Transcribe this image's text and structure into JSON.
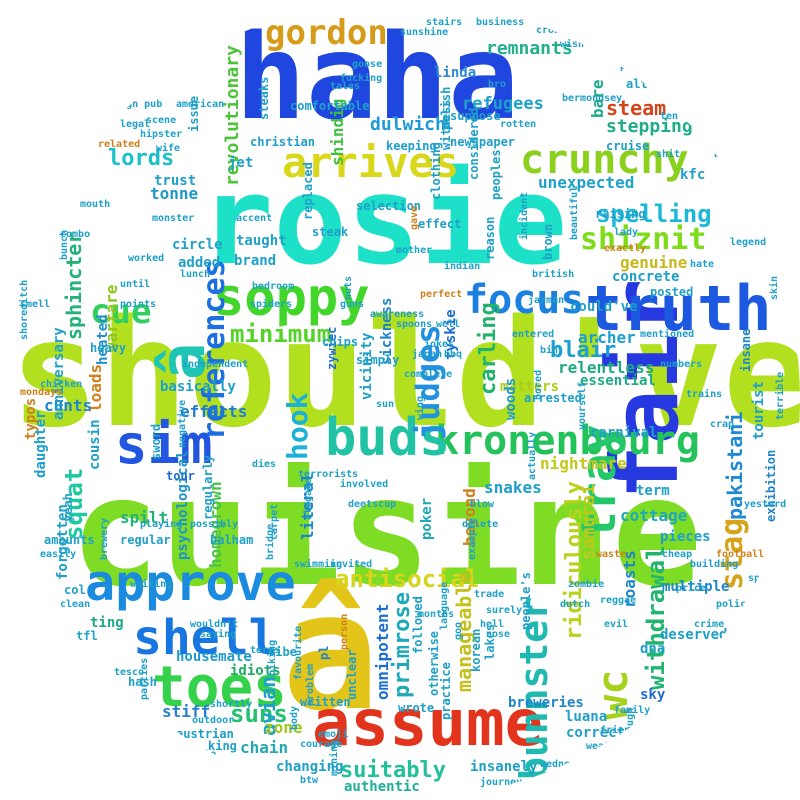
{
  "words": [
    {
      "text": "should've",
      "color": "#b2e01e"
    },
    {
      "text": "cuisine",
      "color": "#7fdc24"
    },
    {
      "text": "rosie",
      "color": "#1de0c8"
    },
    {
      "text": "haha",
      "color": "#1f47e0"
    },
    {
      "text": "â",
      "color": "#e3c51a"
    },
    {
      "text": "assume",
      "color": "#e2341c"
    },
    {
      "text": "fair",
      "color": "#2638e0"
    },
    {
      "text": "truth",
      "color": "#1d59e0"
    },
    {
      "text": "kronenbourg",
      "color": "#24c25b"
    },
    {
      "text": "approve",
      "color": "#1b8be0"
    },
    {
      "text": "shell",
      "color": "#1776e0"
    },
    {
      "text": "toes",
      "color": "#33d24a"
    },
    {
      "text": "soppy",
      "color": "#42d62a"
    },
    {
      "text": "crunchy",
      "color": "#8ad01c"
    },
    {
      "text": "arrives",
      "color": "#d8d71a"
    },
    {
      "text": "buds",
      "color": "#22c3a5"
    },
    {
      "text": "sim",
      "color": "#2256e0"
    },
    {
      "text": "focus",
      "color": "#1c80e0"
    },
    {
      "text": "gordon",
      "color": "#d79b1a"
    },
    {
      "text": "tray",
      "color": "#24c86a"
    },
    {
      "text": "bunnster",
      "color": "#1fb9b0"
    },
    {
      "text": "â",
      "color": "#1ec4b4"
    },
    {
      "text": "shiznit",
      "color": "#7fdc1a"
    },
    {
      "text": "references",
      "color": "#1c6fe0"
    },
    {
      "text": "judges",
      "color": "#2290e0"
    },
    {
      "text": "hook",
      "color": "#1bb1d8"
    },
    {
      "text": "cue",
      "color": "#30d060"
    },
    {
      "text": "squat",
      "color": "#1ec8a0"
    },
    {
      "text": "antisocial",
      "color": "#d6d51b"
    },
    {
      "text": "suns",
      "color": "#23c071"
    },
    {
      "text": "suitably",
      "color": "#24c09a"
    },
    {
      "text": "minimum",
      "color": "#56d32a"
    },
    {
      "text": "spelling",
      "color": "#1cb8d8"
    },
    {
      "text": "lords",
      "color": "#1cc0c8"
    },
    {
      "text": "wc",
      "color": "#a6d21b"
    },
    {
      "text": "withdrawal",
      "color": "#22b56f"
    },
    {
      "text": "stag",
      "color": "#d5a41a"
    },
    {
      "text": "pakistani",
      "color": "#1e8ad4"
    },
    {
      "text": "blair",
      "color": "#1ca0d2"
    },
    {
      "text": "carling",
      "color": "#21b36c"
    },
    {
      "text": "primrose",
      "color": "#1ea8b8"
    },
    {
      "text": "omnipotent",
      "color": "#1b6ed2"
    },
    {
      "text": "manageable",
      "color": "#c5c11b"
    },
    {
      "text": "ridiculously",
      "color": "#b9d21c"
    },
    {
      "text": "steam",
      "color": "#d2461a"
    },
    {
      "text": "stepping",
      "color": "#20ad8a"
    },
    {
      "text": "remnants",
      "color": "#20b08c"
    },
    {
      "text": "refugees",
      "color": "#1ea3c8"
    },
    {
      "text": "dulwich",
      "color": "#1e9ad8"
    },
    {
      "text": "sphincter",
      "color": "#25b27a"
    },
    {
      "text": "warfare",
      "color": "#8ec41b"
    },
    {
      "text": "revolutionary",
      "color": "#4bc43a"
    },
    {
      "text": "shindig",
      "color": "#3ebf3e"
    },
    {
      "text": "linda",
      "color": "#2b8ad2"
    },
    {
      "text": "unexpected",
      "color": "#1ea2c8"
    },
    {
      "text": "relentless",
      "color": "#1eaa80"
    },
    {
      "text": "archer",
      "color": "#1c9fce"
    },
    {
      "text": "genuine",
      "color": "#c8b81b"
    },
    {
      "text": "nightmare",
      "color": "#c1c91b"
    },
    {
      "text": "matters",
      "color": "#aecd1b"
    },
    {
      "text": "homegrown",
      "color": "#47c24a"
    },
    {
      "text": "effects",
      "color": "#1e7cd2"
    },
    {
      "text": "psychological",
      "color": "#1e94c4"
    },
    {
      "text": "loads",
      "color": "#d07f1a"
    },
    {
      "text": "heated",
      "color": "#1e90d0"
    },
    {
      "text": "cunts",
      "color": "#1f86cc"
    },
    {
      "text": "daughter",
      "color": "#1e9fd0"
    },
    {
      "text": "spilt",
      "color": "#21b27b"
    },
    {
      "text": "stiff",
      "color": "#2680d0"
    },
    {
      "text": "avian",
      "color": "#1ea0c8"
    },
    {
      "text": "zone",
      "color": "#9cc81b"
    },
    {
      "text": "chain",
      "color": "#22aab0"
    },
    {
      "text": "changing",
      "color": "#1ea0c8"
    },
    {
      "text": "authentic",
      "color": "#1eae98"
    },
    {
      "text": "insanely",
      "color": "#1ea0c8"
    },
    {
      "text": "luana",
      "color": "#1ea0c8"
    },
    {
      "text": "breweries",
      "color": "#1e86c8"
    },
    {
      "text": "correct",
      "color": "#1ea0c8"
    },
    {
      "text": "ting",
      "color": "#1eaa88"
    },
    {
      "text": "housemate",
      "color": "#1e9ac8"
    },
    {
      "text": "idiots",
      "color": "#1eaa60"
    },
    {
      "text": "cottage",
      "color": "#1ea8b8"
    },
    {
      "text": "snakes",
      "color": "#1ea0c8"
    },
    {
      "text": "beyond",
      "color": "#d0801a"
    },
    {
      "text": "poker",
      "color": "#1ea8b8"
    },
    {
      "text": "woods",
      "color": "#1e9ac8"
    },
    {
      "text": "tyskie",
      "color": "#1e6cd2"
    },
    {
      "text": "vicinity",
      "color": "#1ea0c8"
    },
    {
      "text": "sickness",
      "color": "#1e86c8"
    },
    {
      "text": "tonne",
      "color": "#1e9ac8"
    },
    {
      "text": "basically",
      "color": "#1ea0c8"
    },
    {
      "text": "taught",
      "color": "#1ea0c8"
    },
    {
      "text": "zywiec",
      "color": "#1e6cd2"
    },
    {
      "text": "pl",
      "color": "#1e86c8"
    },
    {
      "text": "roasts",
      "color": "#1e86c8"
    },
    {
      "text": "samurai",
      "color": "#c0c81b"
    },
    {
      "text": "carnival",
      "color": "#1ea0c8"
    },
    {
      "text": "essential",
      "color": "#1eaa88"
    },
    {
      "text": "pieces",
      "color": "#1ea0c8"
    },
    {
      "text": "term",
      "color": "#1ea0c8"
    },
    {
      "text": "dna",
      "color": "#1ea0c8"
    },
    {
      "text": "multiple",
      "color": "#1e86c8"
    },
    {
      "text": "sky",
      "color": "#1e6cd2"
    },
    {
      "text": "deserved",
      "color": "#1ea0c8"
    },
    {
      "text": "insane",
      "color": "#1e86c8"
    },
    {
      "text": "tourist",
      "color": "#1ea0c8"
    },
    {
      "text": "exhibition",
      "color": "#1e86c8"
    },
    {
      "text": "kfc",
      "color": "#1ea0c8"
    },
    {
      "text": "alternative",
      "color": "#1ea0c8"
    },
    {
      "text": "considered",
      "color": "#1ea0c8"
    },
    {
      "text": "bare",
      "color": "#1eaa88"
    },
    {
      "text": "could've",
      "color": "#1ea0c8"
    },
    {
      "text": "literal",
      "color": "#1e86c8"
    },
    {
      "text": "tour",
      "color": "#1e6cd2"
    },
    {
      "text": "regular",
      "color": "#1ea0c8"
    },
    {
      "text": "anniversary",
      "color": "#1ea0c8"
    },
    {
      "text": "typos",
      "color": "#d0801a"
    },
    {
      "text": "forgotten",
      "color": "#1ea0c8"
    },
    {
      "text": "cousin",
      "color": "#1ea0c8"
    },
    {
      "text": "brand",
      "color": "#1ea0c8"
    },
    {
      "text": "circle",
      "color": "#1ea0c8"
    },
    {
      "text": "added",
      "color": "#1ea0c8"
    },
    {
      "text": "trust",
      "color": "#1ea0c8"
    },
    {
      "text": "jet",
      "color": "#1ea0c8"
    },
    {
      "text": "christian",
      "color": "#1ea0c8"
    },
    {
      "text": "steak",
      "color": "#1ea0c8"
    },
    {
      "text": "comfortable",
      "color": "#1ea0c8"
    },
    {
      "text": "keeping",
      "color": "#1ea0c8"
    },
    {
      "text": "raising",
      "color": "#1ea0c8"
    },
    {
      "text": "concrete",
      "color": "#1ea0c8"
    },
    {
      "text": "posted",
      "color": "#1ea0c8"
    },
    {
      "text": "simply",
      "color": "#1ea0c8"
    },
    {
      "text": "chips",
      "color": "#1ea0c8"
    },
    {
      "text": "arrested",
      "color": "#1ea0c8"
    },
    {
      "text": "regularly",
      "color": "#1ea0c8"
    },
    {
      "text": "balham",
      "color": "#1ea0c8"
    },
    {
      "text": "effect",
      "color": "#1ea0c8"
    },
    {
      "text": "selection",
      "color": "#1ea0c8"
    },
    {
      "text": "replaced",
      "color": "#1ea0c8"
    },
    {
      "text": "steaks",
      "color": "#1ea0c8"
    },
    {
      "text": "issue",
      "color": "#1ea0c8"
    },
    {
      "text": "cruise",
      "color": "#1ea0c8"
    },
    {
      "text": "unclear",
      "color": "#1ea0c8"
    },
    {
      "text": "people's",
      "color": "#1ea0c8"
    },
    {
      "text": "korean",
      "color": "#1ea0c8"
    },
    {
      "text": "lakes",
      "color": "#1ea0c8"
    },
    {
      "text": "followed",
      "color": "#1ea0c8"
    },
    {
      "text": "otherwise",
      "color": "#1ea0c8"
    },
    {
      "text": "wrote",
      "color": "#1ea0c8"
    },
    {
      "text": "practice",
      "color": "#1ea0c8"
    },
    {
      "text": "vibe",
      "color": "#1ea0c8"
    },
    {
      "text": "written",
      "color": "#1ea0c8"
    },
    {
      "text": "austrian",
      "color": "#1ea0c8"
    },
    {
      "text": "king",
      "color": "#1ea0c8"
    },
    {
      "text": "hash",
      "color": "#1ea0c8"
    },
    {
      "text": "tfl",
      "color": "#1ea0c8"
    },
    {
      "text": "col",
      "color": "#1ea0c8"
    },
    {
      "text": "amounts",
      "color": "#1ea0c8"
    },
    {
      "text": "yeah",
      "color": "#1ea0c8"
    },
    {
      "text": "sword",
      "color": "#1ea0c8"
    },
    {
      "text": "heavy",
      "color": "#1ea0c8"
    },
    {
      "text": "mondays",
      "color": "#d0801a"
    },
    {
      "text": "chicken",
      "color": "#1ea0c8"
    },
    {
      "text": "japan",
      "color": "#1ea0c8"
    },
    {
      "text": "complete",
      "color": "#1ea0c8"
    },
    {
      "text": "negative",
      "color": "#1ea0c8"
    },
    {
      "text": "dies",
      "color": "#1ea0c8"
    },
    {
      "text": "terrorists",
      "color": "#1ea0c8"
    },
    {
      "text": "involved",
      "color": "#1ea0c8"
    },
    {
      "text": "deetscup",
      "color": "#1ea0c8"
    },
    {
      "text": "aldgate",
      "color": "#1ea0c8"
    },
    {
      "text": "carpet",
      "color": "#1ea0c8"
    },
    {
      "text": "swimming",
      "color": "#1ea0c8"
    },
    {
      "text": "biking",
      "color": "#1ea0c8"
    },
    {
      "text": "nose",
      "color": "#1ea0c8"
    },
    {
      "text": "dutch",
      "color": "#1ea0c8"
    },
    {
      "text": "reggae",
      "color": "#1ea0c8"
    },
    {
      "text": "evil",
      "color": "#1ea0c8"
    },
    {
      "text": "waste",
      "color": "#d0801a"
    },
    {
      "text": "zombie",
      "color": "#1ea0c8"
    },
    {
      "text": "example",
      "color": "#1ea0c8"
    },
    {
      "text": "blow",
      "color": "#1ea0c8"
    },
    {
      "text": "delete",
      "color": "#1ea0c8"
    },
    {
      "text": "spiders",
      "color": "#1ea0c8"
    },
    {
      "text": "independent",
      "color": "#1ea0c8"
    },
    {
      "text": "guns",
      "color": "#1ea0c8"
    },
    {
      "text": "awareness",
      "color": "#1ea0c8"
    },
    {
      "text": "accent",
      "color": "#1ea0c8"
    },
    {
      "text": "polish",
      "color": "#1ea0c8"
    },
    {
      "text": "newspaper",
      "color": "#1ea0c8"
    },
    {
      "text": "suppose",
      "color": "#1ea0c8"
    },
    {
      "text": "clothing",
      "color": "#1ea0c8"
    },
    {
      "text": "witness",
      "color": "#1ea0c8"
    },
    {
      "text": "peoples",
      "color": "#1ea0c8"
    },
    {
      "text": "brown",
      "color": "#1ea0c8"
    },
    {
      "text": "reason",
      "color": "#1ea0c8"
    },
    {
      "text": "mother",
      "color": "#1ea0c8"
    },
    {
      "text": "exactly",
      "color": "#d0801a"
    },
    {
      "text": "lady",
      "color": "#1ea0c8"
    },
    {
      "text": "hate",
      "color": "#1ea0c8"
    },
    {
      "text": "legend",
      "color": "#1ea0c8"
    },
    {
      "text": "skin",
      "color": "#1ea0c8"
    },
    {
      "text": "terrible",
      "color": "#1ea0c8"
    },
    {
      "text": "spain",
      "color": "#1ea0c8"
    },
    {
      "text": "football",
      "color": "#d0801a"
    },
    {
      "text": "police",
      "color": "#1ea0c8"
    },
    {
      "text": "crime",
      "color": "#1ea0c8"
    },
    {
      "text": "building",
      "color": "#1ea0c8"
    },
    {
      "text": "cheap",
      "color": "#1ea0c8"
    },
    {
      "text": "price",
      "color": "#1ea0c8"
    },
    {
      "text": "yesterday",
      "color": "#1ea0c8"
    },
    {
      "text": "crap",
      "color": "#1ea0c8"
    },
    {
      "text": "trains",
      "color": "#1ea0c8"
    },
    {
      "text": "goose",
      "color": "#1ea0c8"
    },
    {
      "text": "stairs",
      "color": "#1ea0c8"
    },
    {
      "text": "business",
      "color": "#1ea0c8"
    },
    {
      "text": "crowd",
      "color": "#1ea0c8"
    },
    {
      "text": "world",
      "color": "#1ea0c8"
    },
    {
      "text": "wish",
      "color": "#1ea0c8"
    },
    {
      "text": "people",
      "color": "#1ea0c8"
    },
    {
      "text": "chilling",
      "color": "#1ea0c8"
    },
    {
      "text": "scene",
      "color": "#1ea0c8"
    },
    {
      "text": "hipster",
      "color": "#1ea0c8"
    },
    {
      "text": "borough pub",
      "color": "#1ea0c8"
    },
    {
      "text": "related",
      "color": "#d0801a"
    },
    {
      "text": "wife",
      "color": "#1ea0c8"
    },
    {
      "text": "worked",
      "color": "#1ea0c8"
    },
    {
      "text": "monster",
      "color": "#1ea0c8"
    },
    {
      "text": "lunch",
      "color": "#1ea0c8"
    },
    {
      "text": "bedroom",
      "color": "#1ea0c8"
    },
    {
      "text": "jarman",
      "color": "#1ea0c8"
    },
    {
      "text": "entered",
      "color": "#1ea0c8"
    },
    {
      "text": "british",
      "color": "#1ea0c8"
    },
    {
      "text": "indian",
      "color": "#1ea0c8"
    },
    {
      "text": "perfect",
      "color": "#d0801a"
    },
    {
      "text": "gave",
      "color": "#d0801a"
    },
    {
      "text": "incident",
      "color": "#1ea0c8"
    },
    {
      "text": "sun",
      "color": "#1ea0c8"
    },
    {
      "text": "wing",
      "color": "#1ea0c8"
    },
    {
      "text": "bored",
      "color": "#1ea0c8"
    },
    {
      "text": "bin",
      "color": "#1ea0c8"
    },
    {
      "text": "actually",
      "color": "#1ea0c8"
    },
    {
      "text": "months",
      "color": "#1ea0c8"
    },
    {
      "text": "language",
      "color": "#1ea0c8"
    },
    {
      "text": "goo",
      "color": "#1ea0c8"
    },
    {
      "text": "emoji",
      "color": "#1ea0c8"
    },
    {
      "text": "outdoor",
      "color": "#1ea0c8"
    },
    {
      "text": "taste",
      "color": "#1ea0c8"
    },
    {
      "text": "battle",
      "color": "#1ea0c8"
    },
    {
      "text": "mining",
      "color": "#1ea0c8"
    },
    {
      "text": "btw",
      "color": "#1ea0c8"
    },
    {
      "text": "journey",
      "color": "#1ea0c8"
    },
    {
      "text": "wednesday",
      "color": "#1ea0c8"
    },
    {
      "text": "weather",
      "color": "#1ea0c8"
    },
    {
      "text": "friends",
      "color": "#1ea0c8"
    },
    {
      "text": "family",
      "color": "#1ea0c8"
    },
    {
      "text": "though",
      "color": "#1ea0c8"
    },
    {
      "text": "tales",
      "color": "#1ea0c8"
    },
    {
      "text": "fucking",
      "color": "#1ea0c8"
    },
    {
      "text": "points",
      "color": "#1ea0c8"
    },
    {
      "text": "until",
      "color": "#1ea0c8"
    },
    {
      "text": "smell",
      "color": "#1ea0c8"
    },
    {
      "text": "shoreditch",
      "color": "#1ea0c8"
    },
    {
      "text": "tesco",
      "color": "#1ea0c8"
    },
    {
      "text": "parties",
      "color": "#1ea0c8"
    },
    {
      "text": "saying",
      "color": "#1ea0c8"
    },
    {
      "text": "bridge",
      "color": "#1ea0c8"
    },
    {
      "text": "possibly",
      "color": "#1ea0c8"
    },
    {
      "text": "easily",
      "color": "#1ea0c8"
    },
    {
      "text": "clean",
      "color": "#1ea0c8"
    },
    {
      "text": "brewery",
      "color": "#1ea0c8"
    },
    {
      "text": "invited",
      "color": "#1ea0c8"
    },
    {
      "text": "terms",
      "color": "#1ea0c8"
    },
    {
      "text": "wouldn't",
      "color": "#1ea0c8"
    },
    {
      "text": "shortly",
      "color": "#1ea0c8"
    },
    {
      "text": "nuts",
      "color": "#1ea0c8"
    },
    {
      "text": "spoons",
      "color": "#1ea0c8"
    },
    {
      "text": "well",
      "color": "#1ea0c8"
    },
    {
      "text": "jokes",
      "color": "#1ea0c8"
    },
    {
      "text": "bbq",
      "color": "#1ea0c8"
    },
    {
      "text": "yourself",
      "color": "#1ea0c8"
    },
    {
      "text": "beautiful",
      "color": "#1ea0c8"
    },
    {
      "text": "mentioned",
      "color": "#1ea0c8"
    },
    {
      "text": "numbers",
      "color": "#1ea0c8"
    },
    {
      "text": "shit",
      "color": "#1ea0c8"
    },
    {
      "text": "bar",
      "color": "#1ea0c8"
    },
    {
      "text": "ten",
      "color": "#1ea0c8"
    },
    {
      "text": "mouth",
      "color": "#1ea0c8"
    },
    {
      "text": "combo",
      "color": "#1ea0c8"
    },
    {
      "text": "bunch",
      "color": "#1ea0c8"
    },
    {
      "text": "playing",
      "color": "#1ea0c8"
    },
    {
      "text": "waiting",
      "color": "#1ea0c8"
    },
    {
      "text": "person",
      "color": "#d0801a"
    },
    {
      "text": "courage",
      "color": "#1ea0c8"
    },
    {
      "text": "favourite",
      "color": "#1ea0c8"
    },
    {
      "text": "problem",
      "color": "#1ea0c8"
    },
    {
      "text": "trade",
      "color": "#1ea0c8"
    },
    {
      "text": "surely",
      "color": "#1ea0c8"
    },
    {
      "text": "hell",
      "color": "#1ea0c8"
    },
    {
      "text": "body",
      "color": "#1ea0c8"
    },
    {
      "text": "sunshine",
      "color": "#1ea0c8"
    },
    {
      "text": "bermondsey",
      "color": "#1ea0c8"
    },
    {
      "text": "bro",
      "color": "#1ea0c8"
    },
    {
      "text": "rotten",
      "color": "#1ea0c8"
    },
    {
      "text": "american",
      "color": "#1ea0c8"
    },
    {
      "text": "legal",
      "color": "#1ea0c8"
    },
    {
      "text": "bar",
      "color": "#1ea0c8"
    },
    {
      "text": "stick",
      "color": "#1ea0c8"
    },
    {
      "text": "tesco",
      "color": "#1ea0c8"
    },
    {
      "text": "doubt",
      "color": "#1ea0c8"
    },
    {
      "text": "weren't",
      "color": "#1ea0c8"
    },
    {
      "text": "sending",
      "color": "#1ea0c8"
    },
    {
      "text": "yah",
      "color": "#d0801a"
    },
    {
      "text": "rich",
      "color": "#1ea0c8"
    }
  ]
}
